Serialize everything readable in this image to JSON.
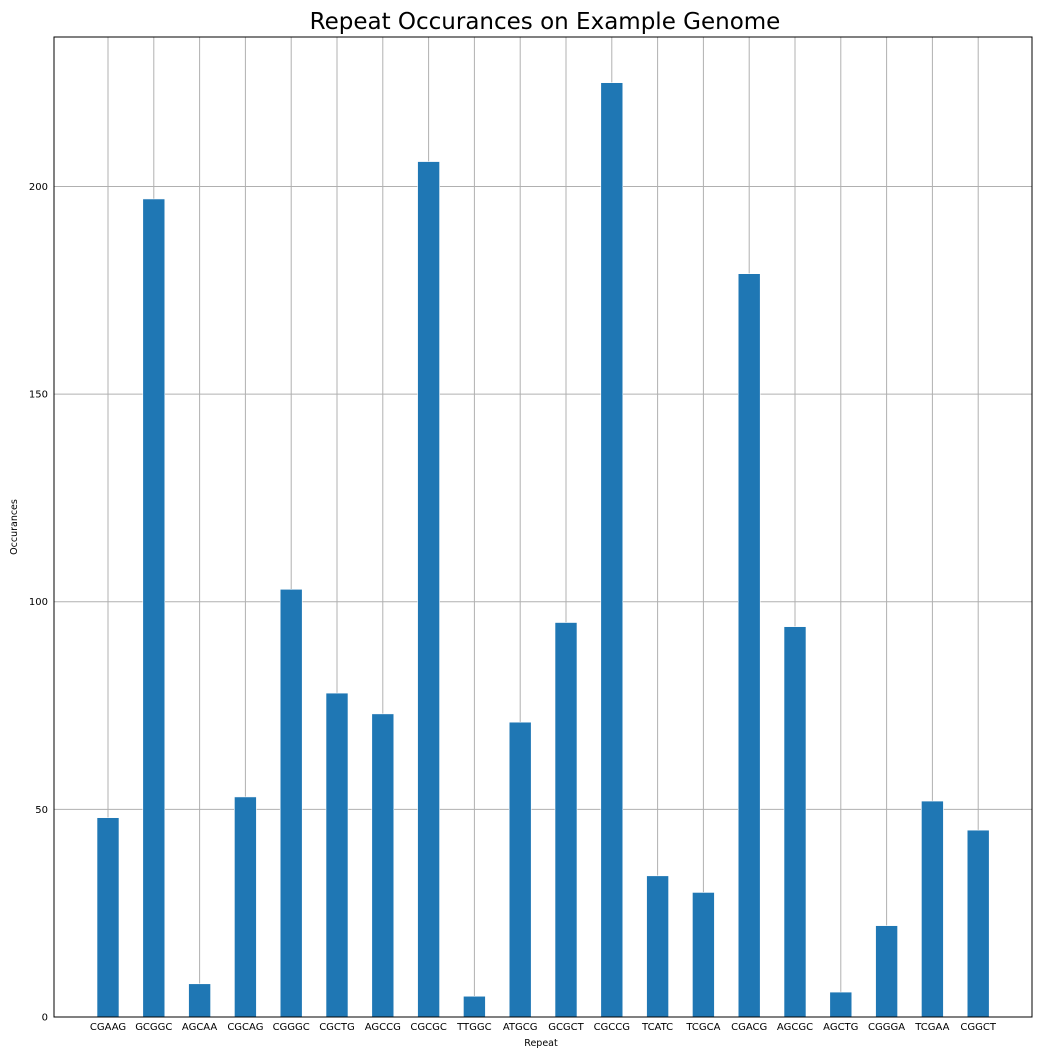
{
  "chart_data": {
    "type": "bar",
    "title": "Repeat Occurances on Example Genome",
    "xlabel": "Repeat",
    "ylabel": "Occurances",
    "categories": [
      "CGAAG",
      "GCGGC",
      "AGCAA",
      "CGCAG",
      "CGGGC",
      "CGCTG",
      "AGCCG",
      "CGCGC",
      "TTGGC",
      "ATGCG",
      "GCGCT",
      "CGCCG",
      "TCATC",
      "TCGCA",
      "CGACG",
      "AGCGC",
      "AGCTG",
      "CGGGA",
      "TCGAA",
      "CGGCT"
    ],
    "values": [
      48,
      197,
      8,
      53,
      103,
      78,
      73,
      206,
      5,
      71,
      95,
      225,
      34,
      30,
      179,
      94,
      6,
      22,
      52,
      45
    ],
    "ylim": [
      0,
      236
    ],
    "yticks": [
      0,
      50,
      100,
      150,
      200
    ],
    "grid": true,
    "bar_color": "#1f77b4"
  }
}
